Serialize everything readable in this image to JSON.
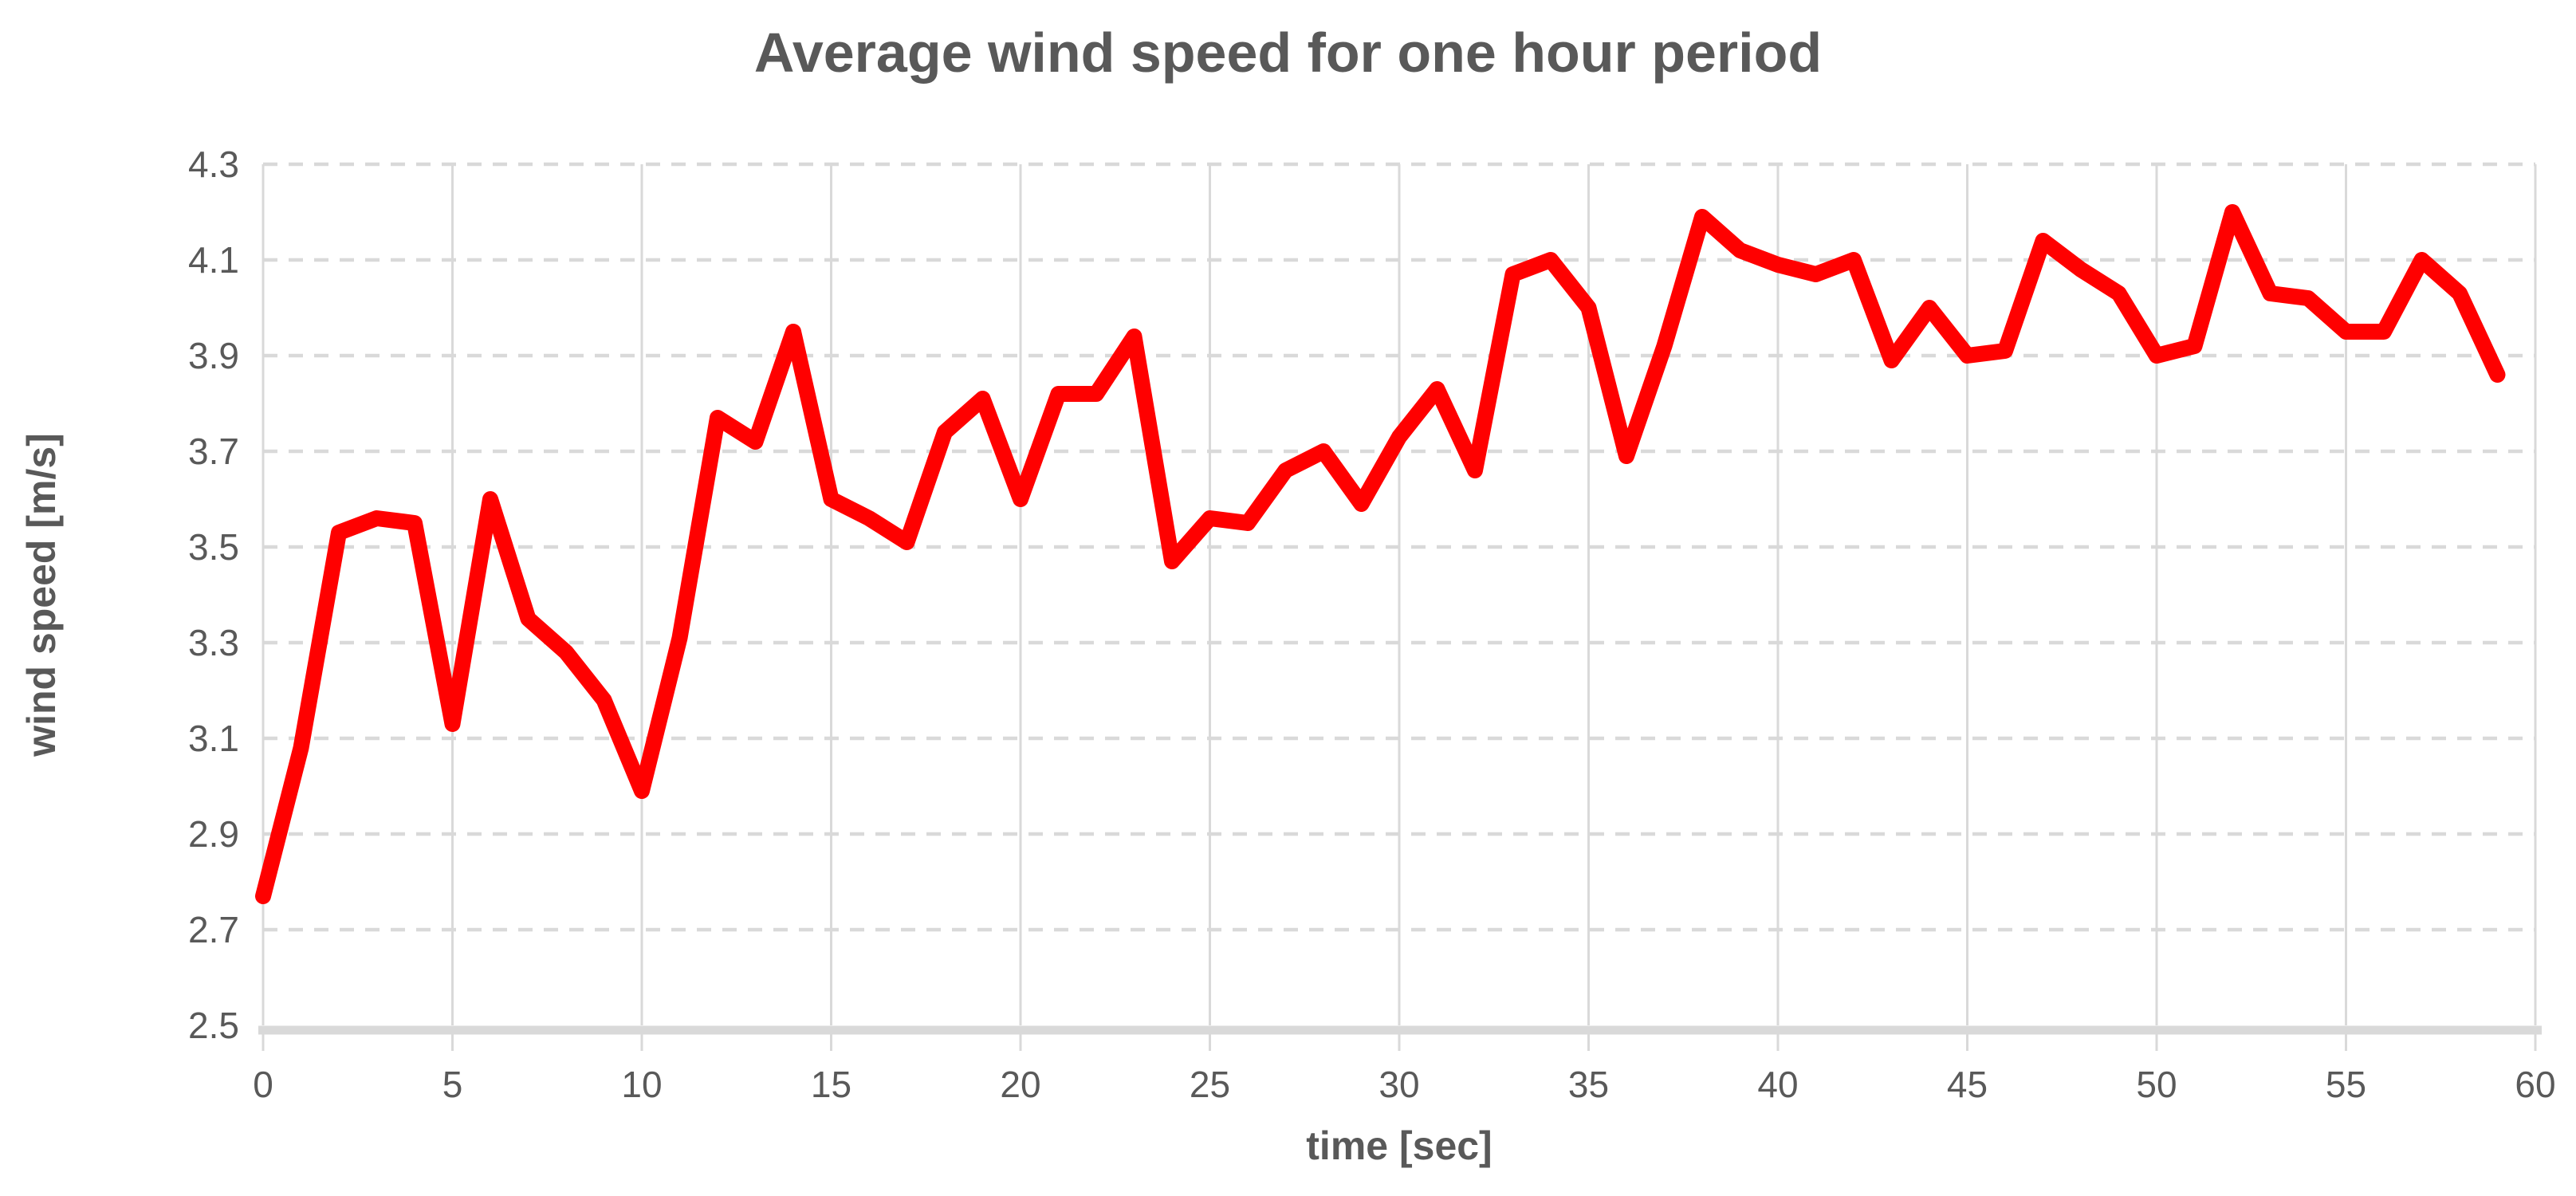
{
  "chart": {
    "title": "Average wind speed for one hour period"
  },
  "chart_data": {
    "type": "line",
    "title": "Average wind speed for one hour period",
    "xlabel": "time [sec]",
    "ylabel": "wind speed [m/s]",
    "x_start": 0,
    "x_step": 1,
    "values": [
      2.77,
      3.08,
      3.53,
      3.56,
      3.55,
      3.13,
      3.6,
      3.35,
      3.28,
      3.18,
      2.99,
      3.31,
      3.77,
      3.72,
      3.95,
      3.6,
      3.56,
      3.51,
      3.74,
      3.81,
      3.6,
      3.82,
      3.82,
      3.94,
      3.47,
      3.56,
      3.55,
      3.66,
      3.7,
      3.59,
      3.73,
      3.83,
      3.66,
      4.07,
      4.1,
      4.0,
      3.69,
      3.92,
      4.19,
      4.12,
      4.09,
      4.07,
      4.1,
      3.89,
      4.0,
      3.9,
      3.91,
      4.14,
      4.08,
      4.03,
      3.9,
      3.92,
      4.2,
      4.03,
      4.02,
      3.95,
      3.95,
      4.1,
      4.03,
      3.86
    ],
    "x_ticks": [
      0,
      5,
      10,
      15,
      20,
      25,
      30,
      35,
      40,
      45,
      50,
      55,
      60
    ],
    "y_ticks": [
      2.5,
      2.7,
      2.9,
      3.1,
      3.3,
      3.5,
      3.7,
      3.9,
      4.1,
      4.3
    ],
    "xlim": [
      0,
      60
    ],
    "ylim": [
      2.5,
      4.3
    ],
    "grid": "horizontal-dashed, vertical-solid",
    "legend": "none",
    "line_color": "#FF0000",
    "grid_color": "#D9D9D9",
    "axis_color": "#D9D9D9",
    "text_color": "#595959",
    "line_width": 20
  }
}
